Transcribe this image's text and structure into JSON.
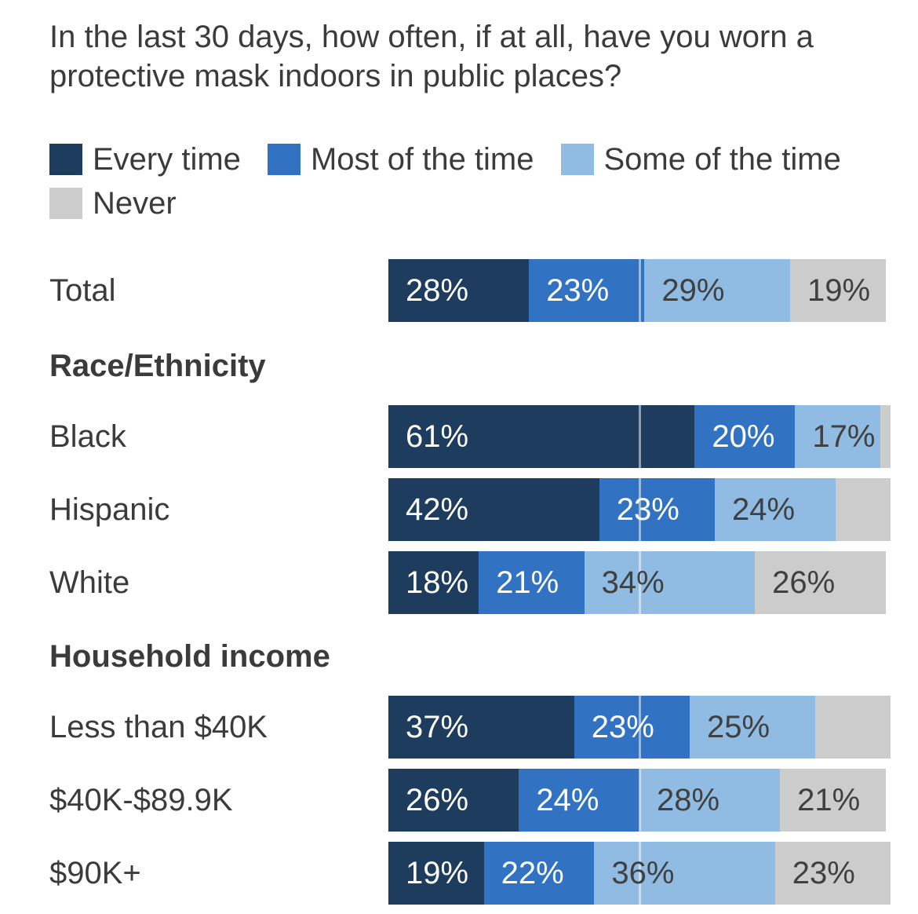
{
  "title": "In the last 30 days, how often, if at all, have you worn a protective mask indoors in public places?",
  "legend": [
    {
      "label": "Every time",
      "color": "#1d3c5e"
    },
    {
      "label": "Most of the time",
      "color": "#3173c2"
    },
    {
      "label": "Some of the time",
      "color": "#90bbe2"
    },
    {
      "label": "Never",
      "color": "#cccccc"
    }
  ],
  "chart_data": {
    "type": "bar",
    "orientation": "horizontal-stacked",
    "unit": "%",
    "xlim": [
      0,
      100
    ],
    "gridline_percent": 50,
    "series_names": [
      "Every time",
      "Most of the time",
      "Some of the time",
      "Never"
    ],
    "colors": [
      "#1d3c5e",
      "#3173c2",
      "#90bbe2",
      "#cccccc"
    ],
    "rows": [
      {
        "kind": "row",
        "label": "Total",
        "values": [
          28,
          23,
          29,
          19
        ],
        "value_labels": [
          "28%",
          "23%",
          "29%",
          "19%"
        ]
      },
      {
        "kind": "section",
        "label": "Race/Ethnicity"
      },
      {
        "kind": "row",
        "label": "Black",
        "values": [
          61,
          20,
          17,
          2
        ],
        "value_labels": [
          "61%",
          "20%",
          "17%",
          ""
        ]
      },
      {
        "kind": "row",
        "label": "Hispanic",
        "values": [
          42,
          23,
          24,
          11
        ],
        "value_labels": [
          "42%",
          "23%",
          "24%",
          ""
        ]
      },
      {
        "kind": "row",
        "label": "White",
        "values": [
          18,
          21,
          34,
          26
        ],
        "value_labels": [
          "18%",
          "21%",
          "34%",
          "26%"
        ]
      },
      {
        "kind": "section",
        "label": "Household income"
      },
      {
        "kind": "row",
        "label": "Less than $40K",
        "values": [
          37,
          23,
          25,
          15
        ],
        "value_labels": [
          "37%",
          "23%",
          "25%",
          ""
        ]
      },
      {
        "kind": "row",
        "label": "$40K-$89.9K",
        "values": [
          26,
          24,
          28,
          21
        ],
        "value_labels": [
          "26%",
          "24%",
          "28%",
          "21%"
        ]
      },
      {
        "kind": "row",
        "label": "$90K+",
        "values": [
          19,
          22,
          36,
          23
        ],
        "value_labels": [
          "19%",
          "22%",
          "36%",
          "23%"
        ]
      }
    ]
  }
}
